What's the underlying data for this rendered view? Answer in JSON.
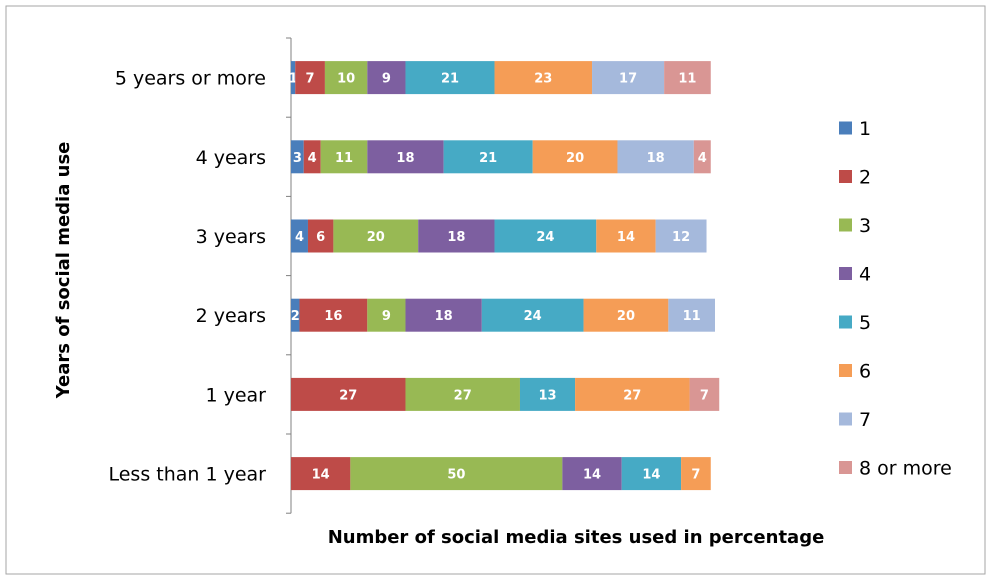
{
  "chart_data": {
    "type": "bar",
    "orientation": "horizontal-stacked",
    "title": "",
    "xlabel": "Number of social media sites used in percentage",
    "ylabel": "Years of social media use",
    "categories": [
      "5 years or more",
      "4 years",
      "3 years",
      "2 years",
      "1 year",
      "Less than 1 year"
    ],
    "xlim": [
      0,
      100
    ],
    "grid": false,
    "legend_position": "right",
    "series": [
      {
        "name": "1",
        "color": "#4a7ebb",
        "values": [
          1,
          3,
          4,
          2,
          0,
          0
        ]
      },
      {
        "name": "2",
        "color": "#be4b48",
        "values": [
          7,
          4,
          6,
          16,
          27,
          14
        ]
      },
      {
        "name": "3",
        "color": "#98b954",
        "values": [
          10,
          11,
          20,
          9,
          27,
          50
        ]
      },
      {
        "name": "4",
        "color": "#7d5fa0",
        "values": [
          9,
          18,
          18,
          18,
          0,
          14
        ]
      },
      {
        "name": "5",
        "color": "#46aac5",
        "values": [
          21,
          21,
          24,
          24,
          13,
          14
        ]
      },
      {
        "name": "6",
        "color": "#f59d56",
        "values": [
          23,
          20,
          14,
          20,
          27,
          7
        ]
      },
      {
        "name": "7",
        "color": "#a5b9dc",
        "values": [
          17,
          18,
          12,
          11,
          0,
          0
        ]
      },
      {
        "name": "8 or more",
        "color": "#d99694",
        "values": [
          11,
          4,
          0,
          0,
          7,
          0
        ]
      }
    ]
  }
}
